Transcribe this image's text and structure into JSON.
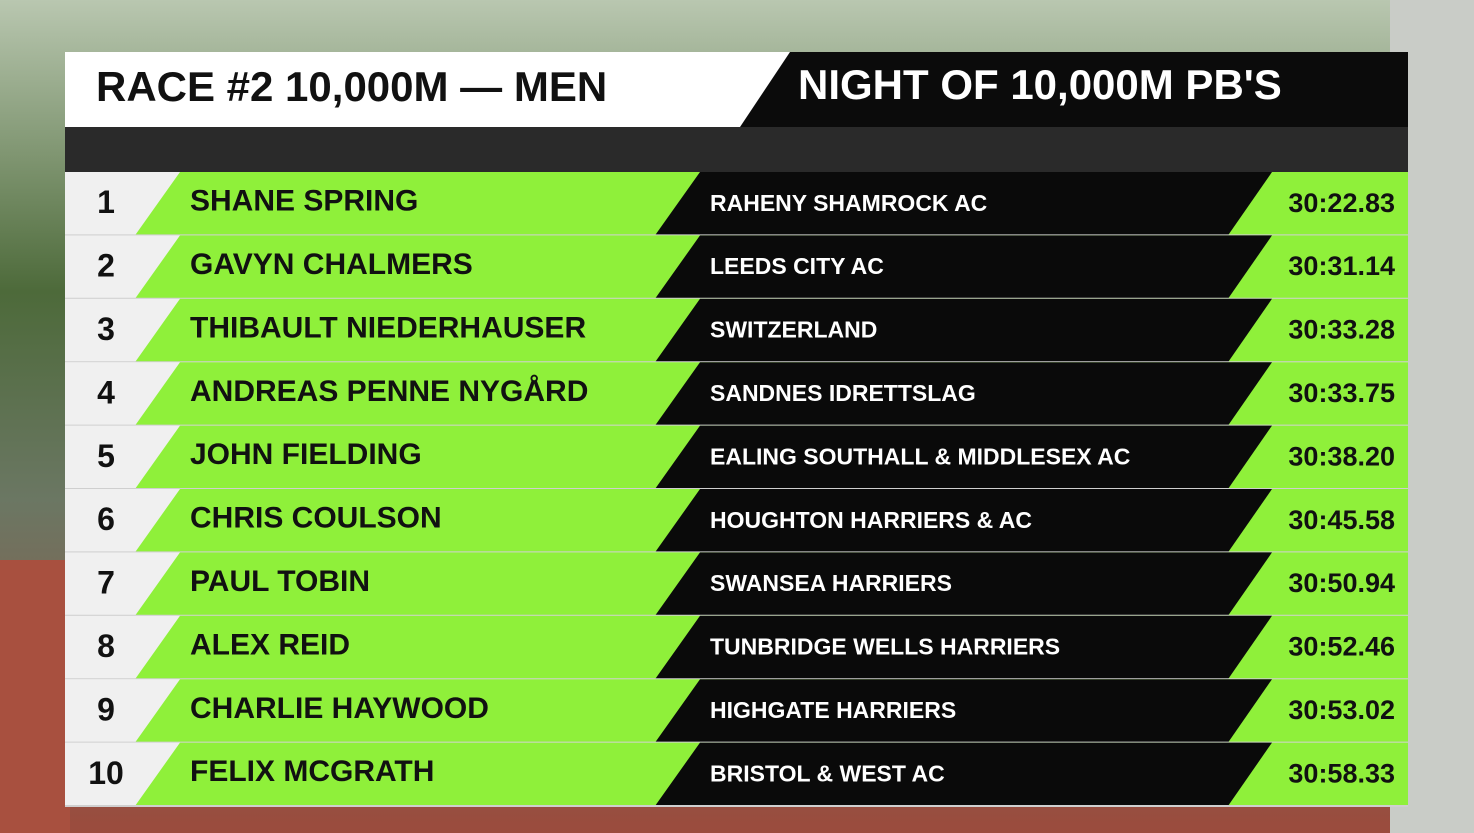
{
  "header": {
    "title": "RACE #2 10,000M — MEN",
    "subtitle": "NIGHT OF 10,000M PB'S"
  },
  "table": {
    "rows": [
      [
        "1",
        "SHANE SPRING",
        "RAHENY SHAMROCK AC",
        "30:22.83"
      ],
      [
        "2",
        "GAVYN CHALMERS",
        "LEEDS CITY AC",
        "30:31.14"
      ],
      [
        "3",
        "THIBAULT NIEDERHAUSER",
        "SWITZERLAND",
        "30:33.28"
      ],
      [
        "4",
        "ANDREAS PENNE NYGÅRD",
        "SANDNES IDRETTSLAG",
        "30:33.75"
      ],
      [
        "5",
        "JOHN FIELDING",
        "EALING SOUTHALL & MIDDLESEX AC",
        "30:38.20"
      ],
      [
        "6",
        "CHRIS COULSON",
        "HOUGHTON HARRIERS & AC",
        "30:45.58"
      ],
      [
        "7",
        "PAUL TOBIN",
        "SWANSEA HARRIERS",
        "30:50.94"
      ],
      [
        "8",
        "ALEX REID",
        "TUNBRIDGE WELLS HARRIERS",
        "30:52.46"
      ],
      [
        "9",
        "CHARLIE HAYWOOD",
        "HIGHGATE HARRIERS",
        "30:53.02"
      ],
      [
        "10",
        "FELIX MCGRATH",
        "BRISTOL & WEST AC",
        "30:58.33"
      ]
    ]
  }
}
